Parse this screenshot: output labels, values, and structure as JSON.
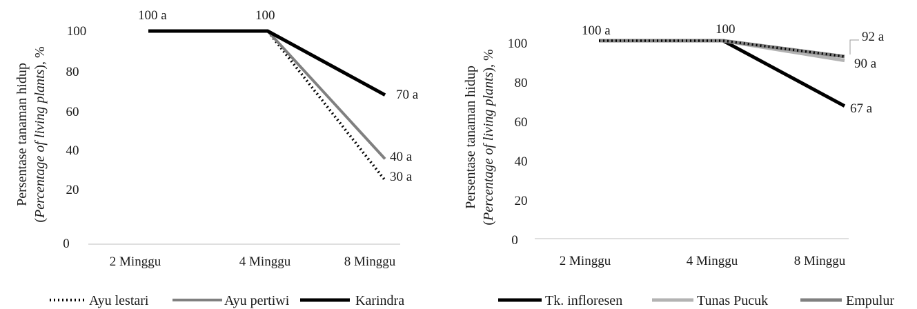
{
  "chart_data": [
    {
      "type": "line",
      "categories": [
        "2 Minggu",
        "4 Minggu",
        "8 Minggu"
      ],
      "ylabel_line1": "Persentase tanaman hidup",
      "ylabel_line2_prefix": "(",
      "ylabel_line2_italic": "Percentage of living plants",
      "ylabel_line2_suffix": "), %",
      "yticks": [
        "0",
        "20",
        "40",
        "60",
        "80",
        "100"
      ],
      "ylim": [
        0,
        100
      ],
      "grid": false,
      "legend_position": "bottom",
      "series": [
        {
          "name": "Ayu lestari",
          "values": [
            100,
            100,
            30
          ],
          "color": "#000000",
          "style": "dotted",
          "labels": [
            "",
            "",
            "30 a"
          ]
        },
        {
          "name": "Ayu pertiwi",
          "values": [
            100,
            100,
            40
          ],
          "color": "#808080",
          "style": "solid",
          "labels": [
            "",
            "",
            "40 a"
          ]
        },
        {
          "name": "Karindra",
          "values": [
            100,
            100,
            70
          ],
          "color": "#000000",
          "style": "solid",
          "labels": [
            "100 a",
            "100",
            "70 a"
          ]
        }
      ]
    },
    {
      "type": "line",
      "categories": [
        "2 Minggu",
        "4 Minggu",
        "8 Minggu"
      ],
      "ylabel_line1": "Persentase tanaman hidup",
      "ylabel_line2_prefix": "(",
      "ylabel_line2_italic": "Percentage of living plants",
      "ylabel_line2_suffix": "), %",
      "yticks": [
        "0",
        "20",
        "40",
        "60",
        "80",
        "100"
      ],
      "ylim": [
        0,
        100
      ],
      "grid": false,
      "legend_position": "bottom",
      "series": [
        {
          "name": "Tk. infloresen",
          "values": [
            100,
            100,
            67
          ],
          "color": "#000000",
          "style": "solid",
          "labels": [
            "",
            "",
            "67 a"
          ]
        },
        {
          "name": "Tunas Pucuk",
          "values": [
            100,
            100,
            90
          ],
          "color": "#b3b3b3",
          "style": "solid",
          "labels": [
            "",
            "",
            "90 a"
          ]
        },
        {
          "name": "Empulur",
          "values": [
            100,
            100,
            92
          ],
          "color": "#808080",
          "style": "solid",
          "labels": [
            "100 a",
            "100",
            "92 a"
          ]
        },
        {
          "name": "",
          "values": [
            100,
            100,
            92
          ],
          "color": "#000000",
          "style": "dotted",
          "labels": [
            "",
            "",
            ""
          ]
        }
      ]
    }
  ]
}
